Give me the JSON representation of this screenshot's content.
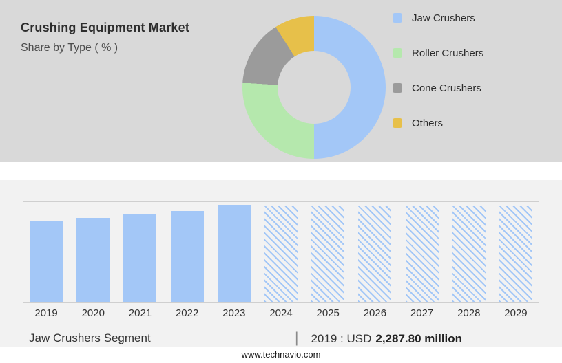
{
  "page": {
    "title": "Crushing Equipment Market",
    "subtitle": "Share by Type ( % )",
    "footer": "www.technavio.com"
  },
  "caption": {
    "segment_label": "Jaw Crushers Segment",
    "divider": "|",
    "value_prefix": "2019 : USD",
    "value_bold": "2,287.80 million"
  },
  "colors": {
    "top_panel_bg": "#d9d9d9",
    "bottom_panel_bg": "#f2f2f2",
    "bar_fill": "#a3c7f7",
    "grid_line": "#cfcfcf"
  },
  "chart_data": [
    {
      "type": "pie",
      "donut": true,
      "title": "Share by Type ( % )",
      "labels": [
        "Jaw Crushers",
        "Roller Crushers",
        "Cone Crushers",
        "Others"
      ],
      "values": [
        50,
        26,
        15,
        9
      ],
      "colors": [
        "#a3c7f7",
        "#b5e8ad",
        "#9b9b9b",
        "#e7c04a"
      ],
      "legend_position": "right"
    },
    {
      "type": "bar",
      "title": "Jaw Crushers Segment",
      "categories": [
        "2019",
        "2020",
        "2021",
        "2022",
        "2023",
        "2024",
        "2025",
        "2026",
        "2027",
        "2028",
        "2029"
      ],
      "values": [
        81,
        84,
        88,
        91,
        97,
        96,
        96,
        96,
        96,
        96,
        96
      ],
      "ylim": [
        0,
        100
      ],
      "xlabel": "",
      "ylabel": "",
      "forecast_start_index": 5,
      "bar_styles": [
        "solid",
        "solid",
        "solid",
        "solid",
        "solid",
        "hatched",
        "hatched",
        "hatched",
        "hatched",
        "hatched",
        "hatched"
      ],
      "grid": "top-and-bottom-lines-only"
    }
  ]
}
